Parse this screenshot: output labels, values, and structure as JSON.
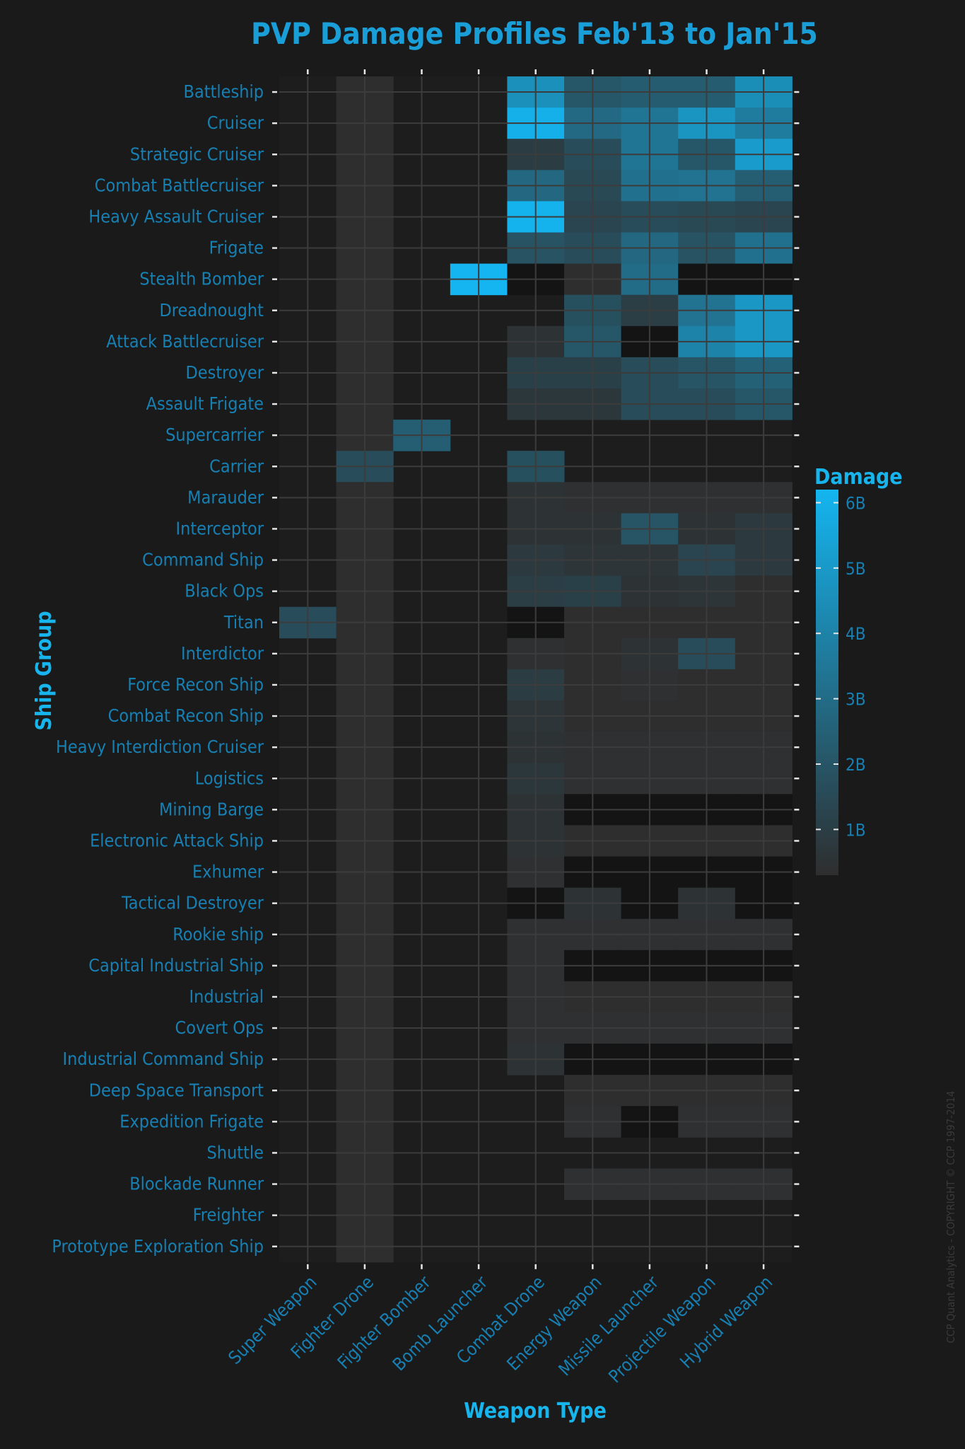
{
  "chart_data": {
    "type": "heatmap",
    "title": "PVP Damage Profiles Feb'13 to Jan'15",
    "xlabel": "Weapon Type",
    "ylabel": "Ship Group",
    "x_categories": [
      "Super Weapon",
      "Fighter Drone",
      "Fighter Bomber",
      "Bomb Launcher",
      "Combat Drone",
      "Energy Weapon",
      "Missile Launcher",
      "Projectile Weapon",
      "Hybrid Weapon"
    ],
    "y_categories": [
      "Battleship",
      "Cruiser",
      "Strategic Cruiser",
      "Combat Battlecruiser",
      "Heavy Assault Cruiser",
      "Frigate",
      "Stealth Bomber",
      "Dreadnought",
      "Attack Battlecruiser",
      "Destroyer",
      "Assault Frigate",
      "Supercarrier",
      "Carrier",
      "Marauder",
      "Interceptor",
      "Command Ship",
      "Black Ops",
      "Titan",
      "Interdictor",
      "Force Recon Ship",
      "Combat Recon Ship",
      "Heavy Interdiction Cruiser",
      "Logistics",
      "Mining Barge",
      "Electronic Attack Ship",
      "Exhumer",
      "Tactical Destroyer",
      "Rookie ship",
      "Capital Industrial Ship",
      "Industrial",
      "Covert Ops",
      "Industrial Command Ship",
      "Deep Space Transport",
      "Expedition Frigate",
      "Shuttle",
      "Blockade Runner",
      "Freighter",
      "Prototype Exploration Ship"
    ],
    "values_billions": [
      [
        null,
        0.3,
        null,
        null,
        4.6,
        2.1,
        2.3,
        2.3,
        4.5
      ],
      [
        null,
        0.3,
        null,
        null,
        6.0,
        2.9,
        3.4,
        4.8,
        3.7
      ],
      [
        null,
        0.3,
        null,
        null,
        0.9,
        1.6,
        3.4,
        2.1,
        5.1
      ],
      [
        null,
        0.3,
        null,
        null,
        2.8,
        1.5,
        3.2,
        3.3,
        2.4
      ],
      [
        null,
        0.3,
        null,
        null,
        6.1,
        1.3,
        1.6,
        1.5,
        1.3
      ],
      [
        null,
        0.3,
        null,
        null,
        1.9,
        1.6,
        2.8,
        1.9,
        3.2
      ],
      [
        null,
        0.3,
        null,
        6.2,
        0.1,
        0.3,
        3.0,
        0.1,
        0.1
      ],
      [
        null,
        0.3,
        null,
        null,
        null,
        1.8,
        1.0,
        3.3,
        4.9
      ],
      [
        null,
        0.3,
        null,
        null,
        0.5,
        2.1,
        0.0,
        4.0,
        4.9
      ],
      [
        null,
        0.3,
        null,
        null,
        1.1,
        1.1,
        1.6,
        2.0,
        2.5
      ],
      [
        null,
        0.3,
        null,
        null,
        0.7,
        0.7,
        1.6,
        1.6,
        2.1
      ],
      [
        null,
        0.3,
        2.4,
        null,
        null,
        null,
        null,
        null,
        null
      ],
      [
        null,
        1.6,
        null,
        null,
        1.8,
        null,
        null,
        null,
        null
      ],
      [
        null,
        0.3,
        null,
        null,
        0.5,
        0.4,
        0.4,
        0.4,
        0.4
      ],
      [
        null,
        0.3,
        null,
        null,
        0.5,
        0.5,
        2.0,
        0.5,
        0.8
      ],
      [
        null,
        0.3,
        null,
        null,
        0.8,
        0.6,
        0.6,
        1.3,
        0.8
      ],
      [
        null,
        0.3,
        null,
        null,
        1.0,
        1.1,
        0.5,
        0.6,
        0.3
      ],
      [
        1.6,
        0.3,
        null,
        null,
        0.1,
        0.3,
        0.3,
        0.3,
        0.3
      ],
      [
        null,
        0.3,
        null,
        null,
        0.4,
        0.3,
        0.5,
        1.6,
        0.3
      ],
      [
        null,
        0.3,
        null,
        null,
        0.9,
        0.3,
        0.4,
        0.3,
        0.3
      ],
      [
        null,
        0.3,
        null,
        null,
        0.6,
        0.3,
        0.3,
        0.3,
        0.3
      ],
      [
        null,
        0.3,
        null,
        null,
        0.5,
        0.4,
        0.4,
        0.4,
        0.4
      ],
      [
        null,
        0.3,
        null,
        null,
        0.7,
        0.4,
        0.4,
        0.4,
        0.4
      ],
      [
        null,
        0.3,
        null,
        null,
        0.5,
        0.1,
        0.1,
        0.1,
        0.1
      ],
      [
        null,
        0.3,
        null,
        null,
        0.5,
        0.3,
        0.3,
        0.3,
        0.3
      ],
      [
        null,
        0.3,
        null,
        null,
        0.4,
        0.1,
        0.1,
        0.1,
        0.1
      ],
      [
        null,
        0.3,
        null,
        null,
        0.1,
        0.5,
        0.1,
        0.5,
        0.1
      ],
      [
        null,
        0.3,
        null,
        null,
        0.4,
        0.4,
        0.4,
        0.4,
        0.4
      ],
      [
        null,
        0.3,
        null,
        null,
        0.4,
        0.1,
        0.1,
        0.1,
        0.1
      ],
      [
        null,
        0.3,
        null,
        null,
        0.4,
        0.3,
        0.3,
        0.3,
        0.3
      ],
      [
        null,
        0.3,
        null,
        null,
        0.4,
        0.4,
        0.4,
        0.4,
        0.4
      ],
      [
        null,
        0.3,
        null,
        null,
        0.5,
        0.1,
        0.1,
        0.1,
        0.1
      ],
      [
        null,
        0.3,
        null,
        null,
        null,
        0.3,
        0.3,
        0.3,
        0.3
      ],
      [
        null,
        0.3,
        null,
        null,
        null,
        0.4,
        0.1,
        0.4,
        0.4
      ],
      [
        null,
        0.3,
        null,
        null,
        null,
        null,
        null,
        null,
        null
      ],
      [
        null,
        0.3,
        null,
        null,
        null,
        0.4,
        0.4,
        0.4,
        0.4
      ],
      [
        null,
        0.3,
        null,
        null,
        null,
        null,
        null,
        null,
        null
      ],
      [
        null,
        0.3,
        null,
        null,
        null,
        null,
        null,
        null,
        null
      ]
    ],
    "color_scale": {
      "title": "Damage",
      "range_billions": [
        0.3,
        6.2
      ],
      "ticks": [
        1,
        2,
        3,
        4,
        5,
        6
      ],
      "tick_labels": [
        "1B",
        "2B",
        "3B",
        "4B",
        "5B",
        "6B"
      ],
      "low_color": "#2e2e2e",
      "high_color": "#14b5f0"
    },
    "grid": true,
    "legend_position": "right",
    "background": "#1a1a1a",
    "missing_color": "#1d1d1d"
  },
  "footer": {
    "copyright": "CCP Quant Analytics - COPYRIGHT © CCP 1997-2014"
  }
}
